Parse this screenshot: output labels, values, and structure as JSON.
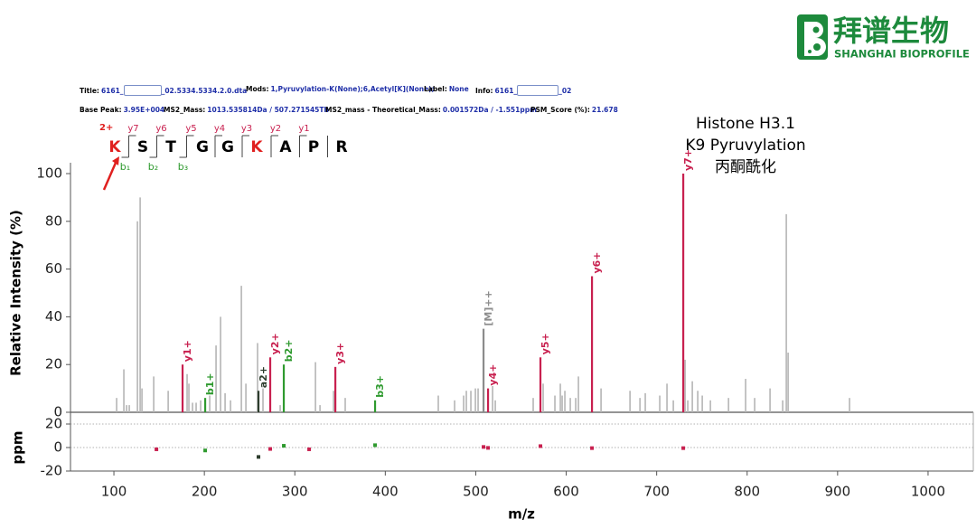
{
  "logo": {
    "name": "拜谱生物",
    "subtitle": "SHANGHAI BIOPROFILE"
  },
  "header": {
    "title": {
      "label": "Title:",
      "value": "6161_",
      "value_end": "_02.5334.5334.2.0.dta"
    },
    "mods": {
      "label": "Mods:",
      "value": "1,Pyruvylation-K(None);6,Acetyl[K](None);"
    },
    "label": {
      "label": "Label:",
      "value": "None"
    },
    "info": {
      "label": "Info:",
      "value": "6161_",
      "value_end": "_02"
    },
    "base_peak": {
      "label": "Base Peak:",
      "value": "3.95E+004"
    },
    "ms2_mass": {
      "label": "MS2_Mass:",
      "value": "1013.535814Da / 507.271545Th"
    },
    "mass_error": {
      "label": "MS2_mass - Theoretical_Mass:",
      "value": "0.001572Da / -1.551ppm"
    },
    "psm_score": {
      "label": "PSM_Score (%):",
      "value": "21.678"
    }
  },
  "peptide": {
    "charge": "2+",
    "residues": [
      "K",
      "S",
      "T",
      "G",
      "G",
      "K",
      "A",
      "P",
      "R"
    ],
    "residue_colors": [
      "#e0201f",
      "#000000",
      "#000000",
      "#000000",
      "#000000",
      "#e0201f",
      "#000000",
      "#000000",
      "#000000"
    ],
    "y_ions": [
      "y7",
      "y6",
      "y5",
      "y4",
      "y3",
      "y2",
      "y1"
    ],
    "y_color": "#c8204f",
    "b_ions": [
      "b₁",
      "b₂",
      "b₃"
    ],
    "b_color": "#2f9a2f"
  },
  "annotation": [
    "Histone H3.1",
    "K9 Pyruvylation",
    "丙酮酰化"
  ],
  "chart_data": [
    {
      "type": "spectrum",
      "y_label": "Relative Intensity (%)",
      "xlim": [
        52,
        1050
      ],
      "ylim": [
        0,
        100
      ],
      "yticks": [
        0,
        20,
        40,
        60,
        80,
        100
      ],
      "series": [
        {
          "color": "#b5b5b5",
          "x": [
            103,
            111,
            114,
            117,
            126,
            129,
            131,
            144,
            160,
            180.9,
            182.9,
            186.9,
            190.9,
            195.9,
            205.9,
            212.9,
            217.9,
            222.9,
            228.9,
            240.9,
            245.9,
            258.8,
            264.8,
            283.8,
            322.8,
            327.8,
            342.8,
            355.7,
            458.6,
            476.6,
            486.6,
            489.6,
            494.6,
            499.6,
            502.6,
            518.6,
            521.6,
            563.5,
            574.5,
            587.5,
            593.5,
            595.5,
            598.5,
            604.5,
            610.5,
            613.5,
            638.5,
            670.5,
            681.5,
            687.4,
            703.4,
            711.4,
            718.4,
            731.4,
            734.4,
            739.4,
            745.4,
            750.4,
            759.4,
            779.4,
            798.3,
            808.3,
            825.3,
            839.3,
            843.3,
            845.3,
            913.2
          ],
          "values": [
            6,
            18,
            3,
            3,
            80,
            90,
            10,
            15,
            9,
            16,
            12,
            4,
            4,
            5,
            7,
            28,
            40,
            8,
            5,
            53,
            12,
            29,
            10,
            3,
            21,
            3,
            9,
            6,
            7,
            5,
            7,
            9,
            9,
            10,
            10,
            11,
            5,
            6,
            12,
            7,
            12,
            7,
            9,
            6,
            6,
            15,
            10,
            9,
            6,
            8,
            7,
            12,
            5,
            22,
            5,
            13,
            9,
            7,
            5,
            6,
            14,
            6,
            10,
            5,
            83,
            25,
            6
          ]
        },
        {
          "color": "#8c8c8c",
          "x": [
            508.6
          ],
          "values": [
            35
          ],
          "labels": [
            "[M]++"
          ]
        },
        {
          "color": "#c8204f",
          "x": [
            175.9,
            272.8,
            344.8,
            513.6,
            571.5,
            628.5,
            729.4
          ],
          "values": [
            20,
            23,
            19,
            10,
            23,
            57,
            100
          ],
          "labels": [
            "y1+",
            "y2+",
            "y3+",
            "y4+",
            "y5+",
            "y6+",
            "y7+"
          ]
        },
        {
          "color": "#2f9a2f",
          "x": [
            200.9,
            287.8,
            388.7
          ],
          "values": [
            6,
            20,
            5
          ],
          "labels": [
            "b1+",
            "b2+",
            "b3+"
          ]
        },
        {
          "color": "#2d3d2d",
          "x": [
            259.8
          ],
          "values": [
            9
          ],
          "labels": [
            "a2+"
          ]
        }
      ]
    },
    {
      "type": "scatter",
      "x_label": "m/z",
      "y_label": "ppm",
      "xlim": [
        52,
        1050
      ],
      "xticks": [
        100,
        200,
        300,
        400,
        500,
        600,
        700,
        800,
        900,
        1000
      ],
      "ylim": [
        -20,
        30
      ],
      "yticks": [
        -20,
        0,
        20
      ],
      "grid": true,
      "series": [
        {
          "color": "#c8204f",
          "x": [
            147.0,
            272.8,
            315.8,
            508.6,
            513.6,
            571.5,
            628.5,
            729.4
          ],
          "values": [
            -1.5,
            -1.2,
            -1.5,
            0.5,
            -0.3,
            1.2,
            -0.5,
            -0.5
          ]
        },
        {
          "color": "#2f9a2f",
          "x": [
            200.9,
            287.8,
            388.7
          ],
          "values": [
            -2.5,
            1.5,
            2
          ]
        },
        {
          "color": "#2d3d2d",
          "x": [
            259.8
          ],
          "values": [
            -8
          ]
        }
      ]
    }
  ]
}
